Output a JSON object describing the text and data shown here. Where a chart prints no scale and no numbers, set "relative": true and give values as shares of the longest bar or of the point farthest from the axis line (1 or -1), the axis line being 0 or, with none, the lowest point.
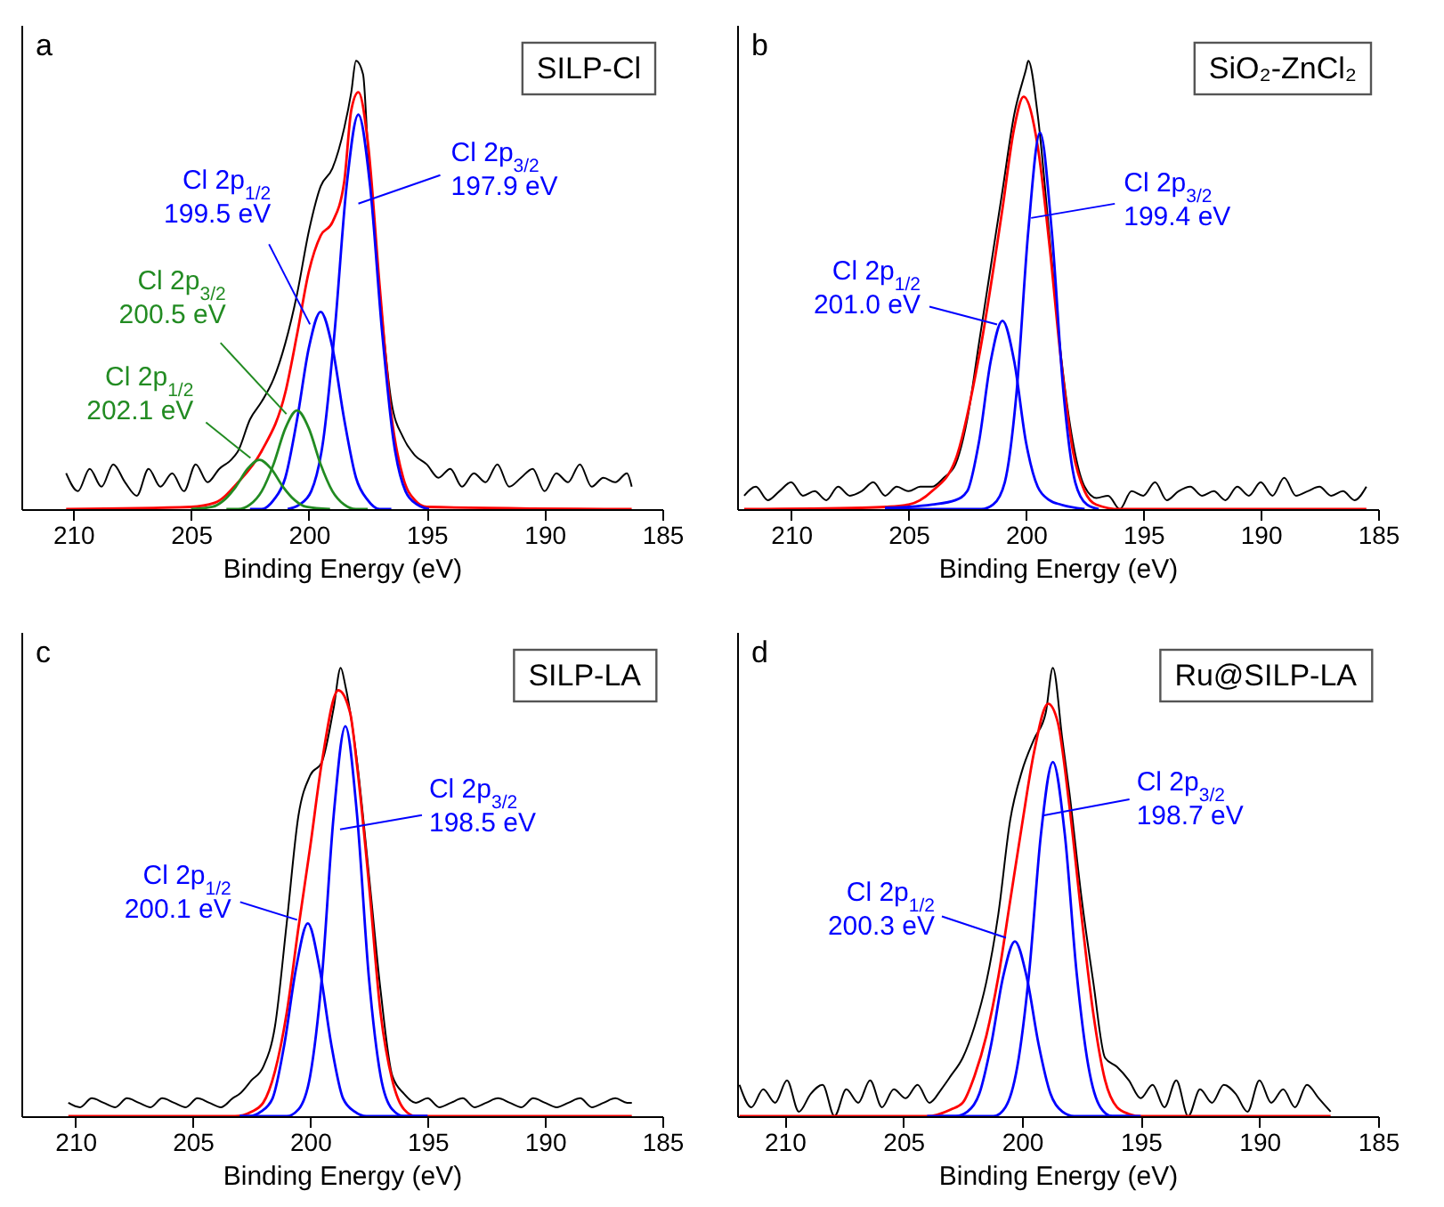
{
  "chart_data": [
    {
      "type": "line",
      "title": "SILP-Cl",
      "xlabel": "Binding Energy (eV)",
      "xlim": [
        212.2,
        185
      ],
      "xticks": [
        210,
        205,
        200,
        195,
        190,
        185
      ],
      "relative": true,
      "tick_labels": "x",
      "annotations": [
        "a"
      ],
      "series": [
        {
          "color": "#000000",
          "x": [
            210.3,
            209.8,
            209.3,
            208.8,
            208.3,
            207.8,
            207.3,
            206.8,
            206.3,
            205.8,
            205.3,
            204.8,
            204.3,
            203.8,
            203.3,
            203,
            202.5,
            202,
            201.5,
            201,
            200.5,
            200,
            199.5,
            199,
            198.5,
            198.2,
            198,
            197.7,
            197.5,
            197,
            196.5,
            196,
            195.5,
            195,
            194.5,
            194,
            193.5,
            193,
            192.5,
            192,
            191.5,
            191,
            190.5,
            190,
            189.5,
            189,
            188.5,
            188,
            187.5,
            187,
            186.5,
            186.3
          ],
          "values": [
            0.08,
            0.04,
            0.09,
            0.05,
            0.1,
            0.06,
            0.03,
            0.09,
            0.05,
            0.08,
            0.04,
            0.1,
            0.06,
            0.09,
            0.11,
            0.13,
            0.2,
            0.24,
            0.29,
            0.37,
            0.48,
            0.62,
            0.72,
            0.76,
            0.85,
            0.93,
            1.0,
            0.97,
            0.81,
            0.49,
            0.24,
            0.16,
            0.12,
            0.1,
            0.07,
            0.09,
            0.05,
            0.08,
            0.06,
            0.1,
            0.05,
            0.07,
            0.09,
            0.04,
            0.08,
            0.06,
            0.1,
            0.05,
            0.07,
            0.06,
            0.08,
            0.05
          ]
        },
        {
          "color": "#ff0000",
          "x": [
            210.3,
            205,
            204,
            203,
            202,
            201,
            200.5,
            200,
            199.5,
            199,
            198.5,
            198.2,
            197.9,
            197.5,
            197,
            196.5,
            196,
            195.5,
            195,
            186.3
          ],
          "values": [
            0,
            0.005,
            0.014,
            0.06,
            0.13,
            0.26,
            0.39,
            0.53,
            0.61,
            0.64,
            0.73,
            0.89,
            0.93,
            0.82,
            0.5,
            0.21,
            0.07,
            0.02,
            0.005,
            0
          ]
        },
        {
          "name": "Cl 2p$_{3/2}$\n197.9 eV",
          "color": "#0000ff",
          "x": [
            200.9,
            200.4,
            199.9,
            199.4,
            198.9,
            198.4,
            197.9,
            197.4,
            196.9,
            196.4,
            195.9,
            195.4,
            194.9
          ],
          "values": [
            0,
            0.01,
            0.04,
            0.15,
            0.4,
            0.72,
            0.88,
            0.72,
            0.4,
            0.15,
            0.04,
            0.01,
            0
          ]
        },
        {
          "name": "Cl 2p$_{1/2}$\n199.5 eV",
          "color": "#0000ff",
          "x": [
            202.5,
            202,
            201.5,
            201,
            200.5,
            200,
            199.5,
            199,
            198.5,
            198,
            197.5,
            197,
            196.5
          ],
          "values": [
            0,
            0,
            0.02,
            0.07,
            0.2,
            0.36,
            0.44,
            0.36,
            0.2,
            0.07,
            0.02,
            0,
            0
          ]
        },
        {
          "name": "Cl 2p$_{3/2}$\n200.5 eV",
          "color": "#228b22",
          "x": [
            203.5,
            203,
            202.5,
            202,
            201.5,
            201,
            200.5,
            200,
            199.5,
            199,
            198.5,
            198,
            197.5
          ],
          "values": [
            0,
            0,
            0.01,
            0.04,
            0.1,
            0.18,
            0.22,
            0.18,
            0.1,
            0.04,
            0.01,
            0,
            0
          ]
        },
        {
          "name": "Cl 2p$_{1/2}$\n202.1 eV",
          "color": "#228b22",
          "x": [
            205,
            204.1,
            203.6,
            203.1,
            202.6,
            202.1,
            201.6,
            201.1,
            200.6,
            200.1,
            199.1
          ],
          "values": [
            0,
            0.005,
            0.02,
            0.05,
            0.09,
            0.11,
            0.09,
            0.05,
            0.02,
            0.005,
            0
          ]
        }
      ]
    },
    {
      "type": "line",
      "title": "SiO₂-ZnCl₂",
      "xlabel": "Binding Energy (eV)",
      "xlim": [
        212.3,
        185
      ],
      "xticks": [
        210,
        205,
        200,
        195,
        190,
        185
      ],
      "relative": true,
      "tick_labels": "x",
      "annotations": [
        "b"
      ],
      "series": [
        {
          "color": "#000000",
          "x": [
            212,
            211.5,
            211,
            210.5,
            210,
            209.5,
            209,
            208.5,
            208,
            207.5,
            207,
            206.5,
            206,
            205.5,
            205,
            204.5,
            204,
            203.5,
            203,
            202.5,
            202,
            201.5,
            201,
            200.5,
            200,
            199.9,
            199.5,
            199,
            198.5,
            198,
            197.5,
            197,
            196.5,
            196,
            195.5,
            195,
            194.5,
            194,
            193.5,
            193,
            192.5,
            192,
            191.5,
            191,
            190.5,
            190,
            189.5,
            189,
            188.5,
            188,
            187.5,
            187,
            186.5,
            186,
            185.5
          ],
          "values": [
            0.03,
            0.05,
            0.02,
            0.04,
            0.06,
            0.03,
            0.04,
            0.02,
            0.05,
            0.03,
            0.04,
            0.06,
            0.03,
            0.05,
            0.04,
            0.05,
            0.05,
            0.07,
            0.1,
            0.2,
            0.37,
            0.54,
            0.71,
            0.88,
            0.98,
            1.0,
            0.88,
            0.61,
            0.34,
            0.15,
            0.05,
            0.025,
            0.03,
            0.0,
            0.04,
            0.03,
            0.06,
            0.02,
            0.04,
            0.05,
            0.03,
            0.04,
            0.02,
            0.05,
            0.03,
            0.06,
            0.03,
            0.07,
            0.03,
            0.04,
            0.05,
            0.03,
            0.04,
            0.02,
            0.05
          ]
        },
        {
          "color": "#ff0000",
          "x": [
            212,
            207,
            206,
            205,
            204,
            203,
            202,
            201,
            200.5,
            200.1,
            199.5,
            199,
            198.5,
            198,
            197.5,
            197,
            196,
            185.5
          ],
          "values": [
            0,
            0.003,
            0.005,
            0.01,
            0.04,
            0.11,
            0.34,
            0.67,
            0.85,
            0.92,
            0.81,
            0.59,
            0.33,
            0.13,
            0.04,
            0.01,
            0,
            0
          ]
        },
        {
          "name": "Cl 2p$_{3/2}$\n199.4 eV",
          "color": "#0000ff",
          "x": [
            206,
            201.9,
            201.4,
            200.9,
            200.4,
            199.9,
            199.4,
            198.9,
            198.4,
            197.9,
            197.4,
            196.9
          ],
          "values": [
            0,
            0,
            0.01,
            0.06,
            0.26,
            0.62,
            0.84,
            0.62,
            0.26,
            0.06,
            0.01,
            0
          ]
        },
        {
          "name": "Cl 2p$_{1/2}$\n201.0 eV",
          "color": "#0000ff",
          "x": [
            206,
            205,
            204,
            203,
            202.5,
            202,
            201.5,
            201,
            200.5,
            200,
            199.5,
            199,
            198.5,
            197.5
          ],
          "values": [
            0.003,
            0.005,
            0.01,
            0.02,
            0.04,
            0.15,
            0.33,
            0.42,
            0.33,
            0.15,
            0.05,
            0.02,
            0.01,
            0
          ]
        }
      ]
    },
    {
      "type": "line",
      "title": "SILP-LA",
      "xlabel": "Binding Energy (eV)",
      "xlim": [
        212.3,
        185
      ],
      "xticks": [
        210,
        205,
        200,
        195,
        190,
        185
      ],
      "relative": true,
      "tick_labels": "x",
      "annotations": [
        "c"
      ],
      "series": [
        {
          "color": "#000000",
          "x": [
            210.3,
            209.8,
            209.3,
            208.8,
            208.3,
            207.8,
            207.3,
            206.8,
            206.3,
            205.8,
            205.3,
            204.8,
            204.3,
            203.8,
            203.3,
            203,
            202.5,
            202,
            201.5,
            201,
            200.5,
            200,
            199.5,
            199,
            198.7,
            198.5,
            198,
            197.5,
            197,
            196.5,
            196,
            195.5,
            195,
            194.5,
            194,
            193.5,
            193,
            192.5,
            192,
            191.5,
            191,
            190.5,
            190,
            189.5,
            189,
            188.5,
            188,
            187.5,
            187,
            186.5,
            186.3
          ],
          "values": [
            0.03,
            0.02,
            0.04,
            0.03,
            0.02,
            0.04,
            0.03,
            0.02,
            0.04,
            0.03,
            0.02,
            0.04,
            0.03,
            0.02,
            0.04,
            0.05,
            0.08,
            0.11,
            0.2,
            0.43,
            0.67,
            0.76,
            0.79,
            0.91,
            1.0,
            0.96,
            0.79,
            0.54,
            0.28,
            0.09,
            0.05,
            0.03,
            0.04,
            0.02,
            0.03,
            0.04,
            0.02,
            0.03,
            0.04,
            0.03,
            0.02,
            0.04,
            0.03,
            0.02,
            0.03,
            0.04,
            0.02,
            0.03,
            0.04,
            0.03,
            0.03
          ]
        },
        {
          "color": "#ff0000",
          "x": [
            210.3,
            203.2,
            202.5,
            202,
            201.5,
            201,
            200.5,
            200,
            199.5,
            198.8,
            198.3,
            198,
            197.5,
            197,
            196.5,
            196,
            195.5,
            186.3
          ],
          "values": [
            0,
            0,
            0.01,
            0.03,
            0.1,
            0.23,
            0.42,
            0.6,
            0.79,
            0.95,
            0.9,
            0.78,
            0.52,
            0.23,
            0.08,
            0.015,
            0,
            0
          ]
        },
        {
          "name": "Cl 2p$_{3/2}$\n198.5 eV",
          "color": "#0000ff",
          "x": [
            203,
            201,
            200.5,
            200,
            199.5,
            199,
            198.5,
            198,
            197.5,
            197,
            196.5,
            196,
            195
          ],
          "values": [
            0,
            0,
            0.015,
            0.09,
            0.31,
            0.67,
            0.87,
            0.67,
            0.31,
            0.09,
            0.015,
            0,
            0
          ]
        },
        {
          "name": "Cl 2p$_{1/2}$\n200.1 eV",
          "color": "#0000ff",
          "x": [
            203,
            202.6,
            202.1,
            201.6,
            201.1,
            200.6,
            200.1,
            199.6,
            199.1,
            198.6,
            198.1,
            197.6,
            195
          ],
          "values": [
            0,
            0,
            0.01,
            0.04,
            0.16,
            0.33,
            0.43,
            0.33,
            0.16,
            0.04,
            0.01,
            0,
            0
          ]
        }
      ]
    },
    {
      "type": "line",
      "title": "Ru@SILP-LA",
      "xlabel": "Binding Energy (eV)",
      "xlim": [
        212,
        185
      ],
      "xticks": [
        210,
        205,
        200,
        195,
        190,
        185
      ],
      "relative": true,
      "tick_labels": "x",
      "annotations": [
        "d"
      ],
      "series": [
        {
          "color": "#000000",
          "x": [
            211.9,
            211.4,
            210.9,
            210.4,
            209.9,
            209.4,
            208.9,
            208.4,
            207.9,
            207.4,
            206.9,
            206.4,
            205.9,
            205.4,
            204.9,
            204.4,
            203.9,
            203.4,
            203,
            202.5,
            202,
            201.5,
            201,
            200.5,
            200,
            199.5,
            199,
            198.7,
            198.3,
            198,
            197.5,
            197,
            196.5,
            196,
            195.5,
            195,
            194.5,
            194,
            193.5,
            193,
            192.5,
            192,
            191.5,
            191,
            190.5,
            190,
            189.5,
            189,
            188.5,
            188,
            187.5,
            187
          ],
          "values": [
            0.07,
            0.02,
            0.06,
            0.03,
            0.08,
            0.01,
            0.05,
            0.07,
            0.0,
            0.06,
            0.03,
            0.08,
            0.02,
            0.06,
            0.04,
            0.07,
            0.03,
            0.06,
            0.09,
            0.13,
            0.2,
            0.3,
            0.45,
            0.66,
            0.77,
            0.84,
            0.9,
            1.0,
            0.84,
            0.72,
            0.49,
            0.3,
            0.13,
            0.11,
            0.08,
            0.04,
            0.07,
            0.02,
            0.08,
            0.0,
            0.06,
            0.03,
            0.07,
            0.05,
            0.01,
            0.08,
            0.03,
            0.06,
            0.02,
            0.07,
            0.04,
            0.01
          ]
        },
        {
          "color": "#ff0000",
          "x": [
            211.9,
            204,
            203,
            202.5,
            202,
            201.5,
            201,
            200.5,
            200,
            199.5,
            198.9,
            198.5,
            198,
            197.5,
            197,
            196.5,
            196,
            195.5,
            195,
            187
          ],
          "values": [
            0,
            0,
            0.015,
            0.03,
            0.09,
            0.18,
            0.31,
            0.48,
            0.65,
            0.81,
            0.92,
            0.88,
            0.69,
            0.45,
            0.23,
            0.08,
            0.02,
            0.005,
            0,
            0
          ]
        },
        {
          "name": "Cl 2p$_{3/2}$\n198.7 eV",
          "color": "#0000ff",
          "x": [
            203.5,
            201.2,
            200.7,
            200.2,
            199.7,
            199.2,
            198.7,
            198.2,
            197.7,
            197.2,
            196.7,
            196.2,
            195
          ],
          "values": [
            0,
            0,
            0.02,
            0.11,
            0.32,
            0.63,
            0.79,
            0.63,
            0.32,
            0.11,
            0.02,
            0,
            0
          ]
        },
        {
          "name": "Cl 2p$_{1/2}$\n200.3 eV",
          "color": "#0000ff",
          "x": [
            204,
            202.8,
            202.3,
            201.8,
            201.3,
            200.8,
            200.3,
            199.8,
            199.3,
            198.8,
            198.3,
            197.8,
            195.5
          ],
          "values": [
            0,
            0,
            0.01,
            0.05,
            0.16,
            0.31,
            0.39,
            0.31,
            0.16,
            0.05,
            0.01,
            0,
            0
          ]
        }
      ]
    }
  ]
}
